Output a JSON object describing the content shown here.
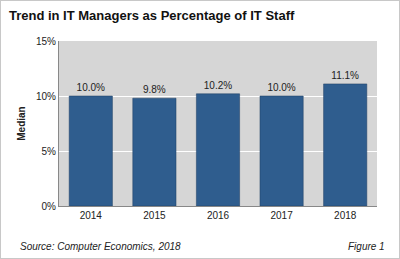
{
  "chart_data": {
    "type": "bar",
    "title": "Trend in IT Managers as Percentage of IT Staff",
    "y_label": "Median",
    "categories": [
      "2014",
      "2015",
      "2016",
      "2017",
      "2018"
    ],
    "values": [
      10.0,
      9.8,
      10.2,
      10.0,
      11.1
    ],
    "value_labels": [
      "10.0%",
      "9.8%",
      "10.2%",
      "10.0%",
      "11.1%"
    ],
    "color": "#2f5d8e",
    "ylim": [
      0,
      15
    ],
    "yticks": [
      {
        "value": 0,
        "label": "0%"
      },
      {
        "value": 5,
        "label": "5%"
      },
      {
        "value": 10,
        "label": "10%"
      },
      {
        "value": 15,
        "label": "15%"
      }
    ],
    "grid": true,
    "data_labels": true,
    "annotations": [
      "Source: Computer Economics, 2018",
      "Figure 1"
    ]
  }
}
